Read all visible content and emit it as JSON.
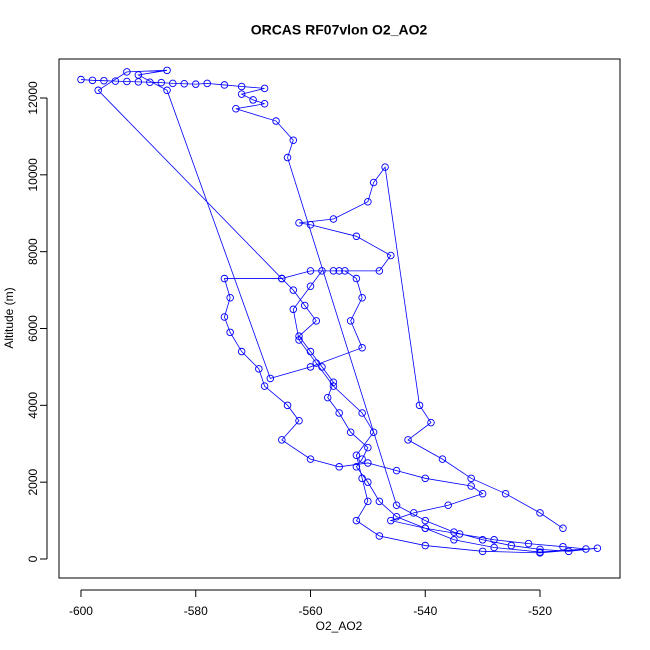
{
  "chart_data": {
    "type": "scatter",
    "title": "ORCAS RF07vlon O2_AO2",
    "x_label": "O2_AO2",
    "y_label": "Altitude (m)",
    "color": "#0000ff",
    "connect": true,
    "x": [
      -600,
      -598,
      -596,
      -594,
      -592,
      -590,
      -588,
      -586,
      -584,
      -582,
      -580,
      -578,
      -575,
      -572,
      -568,
      -572,
      -570,
      -568,
      -573,
      -566,
      -563,
      -564,
      -545,
      -540,
      -535,
      -530,
      -525,
      -520,
      -515,
      -510,
      -520,
      -528,
      -535,
      -540,
      -545,
      -548,
      -550,
      -552,
      -551,
      -550,
      -553,
      -555,
      -557,
      -556,
      -558,
      -560,
      -562,
      -559,
      -561,
      -563,
      -565,
      -575,
      -574,
      -575,
      -574,
      -572,
      -569,
      -568,
      -564,
      -562,
      -565,
      -560,
      -555,
      -550,
      -545,
      -540,
      -532,
      -530,
      -536,
      -542,
      -546,
      -540,
      -534,
      -528,
      -522,
      -516,
      -512,
      -520,
      -530,
      -540,
      -548,
      -552,
      -550,
      -551,
      -552,
      -549,
      -551,
      -556,
      -559,
      -562,
      -563,
      -560,
      -558,
      -556,
      -554,
      -552,
      -551,
      -553,
      -551,
      -560,
      -567,
      -585,
      -590,
      -585,
      -592,
      -597,
      -565,
      -560,
      -555,
      -548,
      -546,
      -552,
      -560,
      -562,
      -556,
      -550,
      -549,
      -547,
      -541,
      -539,
      -543,
      -537,
      -532,
      -526,
      -520,
      -516
    ],
    "values": [
      12480,
      12460,
      12450,
      12440,
      12430,
      12420,
      12410,
      12400,
      12380,
      12370,
      12360,
      12380,
      12340,
      12300,
      12250,
      12100,
      11950,
      11850,
      11720,
      11400,
      10900,
      10450,
      1400,
      1000,
      700,
      500,
      350,
      250,
      200,
      280,
      180,
      300,
      500,
      800,
      1100,
      1500,
      2000,
      2400,
      2600,
      2900,
      3300,
      3800,
      4200,
      4600,
      5000,
      5400,
      5800,
      6200,
      6600,
      7000,
      7300,
      7300,
      6800,
      6300,
      5900,
      5400,
      4950,
      4500,
      4000,
      3600,
      3100,
      2600,
      2400,
      2500,
      2300,
      2100,
      1900,
      1700,
      1400,
      1200,
      1000,
      800,
      650,
      500,
      400,
      320,
      260,
      160,
      200,
      350,
      600,
      1000,
      1500,
      2100,
      2700,
      3300,
      3800,
      4500,
      5100,
      5700,
      6500,
      7100,
      7500,
      7500,
      7500,
      7300,
      6800,
      6200,
      5500,
      5000,
      4700,
      12200,
      12600,
      12720,
      12680,
      12200,
      7300,
      7500,
      7500,
      7500,
      7900,
      8400,
      8700,
      8750,
      8850,
      9300,
      9800,
      10200,
      4000,
      3550,
      3100,
      2600,
      2100,
      1700,
      1200,
      800
    ],
    "xlim": [
      -603.83,
      -506.06
    ],
    "ylim": [
      -494.6,
      13015
    ],
    "xticks": [
      -600,
      -580,
      -560,
      -540,
      -520
    ],
    "yticks": [
      0,
      2000,
      4000,
      6000,
      8000,
      10000,
      12000
    ]
  }
}
